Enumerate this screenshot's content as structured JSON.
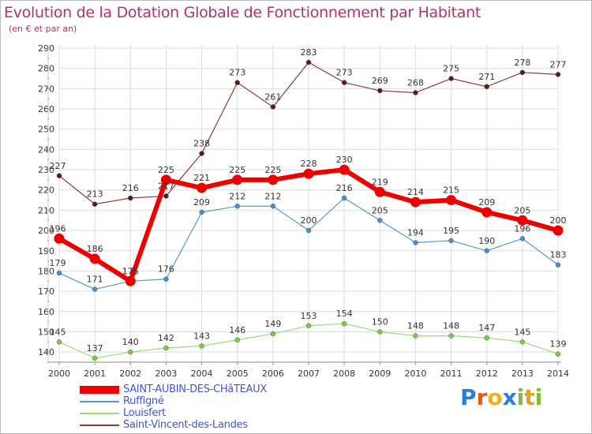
{
  "title": "Evolution de la Dotation Globale de Fonctionnement par Habitant",
  "subtitle": "(en € et par an)",
  "brand": {
    "letters": [
      "P",
      "r",
      "o",
      "x",
      "i",
      "t",
      "i"
    ],
    "colors": [
      "#2d7fd6",
      "#e05a1c",
      "#f2b01e",
      "#2d7fd6",
      "#7bbf3a",
      "#e0a020",
      "#7bbf3a"
    ]
  },
  "chart_data": {
    "type": "line",
    "title": "Evolution de la Dotation Globale de Fonctionnement par Habitant",
    "subtitle": "(en € et par an)",
    "xlabel": "",
    "ylabel": "",
    "x": [
      "2000",
      "2001",
      "2002",
      "2003",
      "2004",
      "2005",
      "2006",
      "2007",
      "2008",
      "2009",
      "2010",
      "2011",
      "2012",
      "2013",
      "2014"
    ],
    "ylim": [
      135,
      290
    ],
    "yticks": [
      "140",
      "150",
      "160",
      "170",
      "180",
      "190",
      "200",
      "210",
      "220",
      "230",
      "240",
      "250",
      "260",
      "270",
      "280",
      "290"
    ],
    "grid": true,
    "legend_position": "bottom-left",
    "series": [
      {
        "name": "SAINT-AUBIN-DES-CHâTEAUX",
        "color": "#ee0000",
        "marker": "#ee0000",
        "width": 6,
        "values": [
          196,
          186,
          175,
          225,
          221,
          225,
          225,
          228,
          230,
          219,
          214,
          215,
          209,
          205,
          200
        ],
        "labels": [
          "196",
          "186",
          "175",
          "225",
          "221",
          "225",
          "225",
          "228",
          "230",
          "219",
          "214",
          "215",
          "209",
          "205",
          "200"
        ]
      },
      {
        "name": "Ruffigné",
        "color": "#5599cc",
        "marker": "#4a8fcc",
        "width": 1.2,
        "values": [
          179,
          171,
          175,
          176,
          209,
          212,
          212,
          200,
          216,
          205,
          194,
          195,
          190,
          196,
          183
        ],
        "labels": [
          "179",
          "171",
          "175",
          "176",
          "209",
          "212",
          "212",
          "200",
          "216",
          "205",
          "194",
          "195",
          "190",
          "196",
          "183"
        ]
      },
      {
        "name": "Louisfert",
        "color": "#99dd77",
        "marker": "#77cc44",
        "width": 1.2,
        "values": [
          145,
          137,
          140,
          142,
          143,
          146,
          149,
          153,
          154,
          150,
          148,
          148,
          147,
          145,
          139
        ],
        "labels": [
          "145",
          "137",
          "140",
          "142",
          "143",
          "146",
          "149",
          "153",
          "154",
          "150",
          "148",
          "148",
          "147",
          "145",
          "139"
        ]
      },
      {
        "name": "Saint-Vincent-des-Landes",
        "color": "#8a3b3b",
        "marker": "#5a1a1a",
        "width": 1.2,
        "values": [
          227,
          213,
          216,
          217,
          238,
          273,
          261,
          283,
          273,
          269,
          268,
          275,
          271,
          278,
          277
        ],
        "labels": [
          "227",
          "213",
          "216",
          "217",
          "238",
          "273",
          "261",
          "283",
          "273",
          "269",
          "268",
          "275",
          "271",
          "278",
          "277"
        ]
      }
    ]
  }
}
